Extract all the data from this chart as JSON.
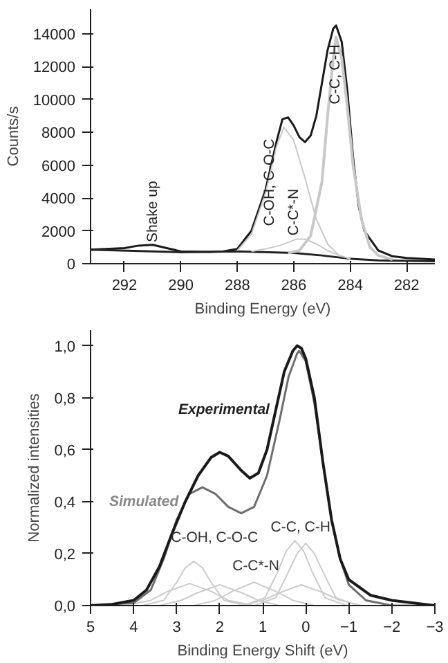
{
  "chart_data": [
    {
      "type": "line",
      "xlabel": "Binding Energy (eV)",
      "ylabel": "Counts/s",
      "xlim": [
        293.2,
        281
      ],
      "ylim": [
        0,
        15500
      ],
      "xticks": [
        292,
        290,
        288,
        286,
        284,
        282
      ],
      "yticks": [
        0,
        2000,
        4000,
        6000,
        8000,
        10000,
        12000,
        14000
      ],
      "grid": false,
      "marker": "none",
      "line_style": "solid",
      "annotations": [
        "Shake up",
        "C-OH, C-O-C",
        "C-C*-N",
        "C-C, C-H"
      ],
      "series": [
        {
          "color": "#1a1a1a",
          "x": [
            293.2,
            292,
            291.5,
            291,
            290.5,
            290,
            289,
            288.5,
            288,
            287.5,
            287,
            286.8,
            286.6,
            286.4,
            286.2,
            286,
            285.8,
            285.6,
            285.4,
            285.2,
            285,
            284.8,
            284.6,
            284.5,
            284.3,
            284.1,
            283.9,
            283.7,
            283.5,
            283,
            282.5,
            282,
            281
          ],
          "values": [
            850,
            950,
            1100,
            1150,
            950,
            750,
            720,
            750,
            900,
            2000,
            4500,
            6000,
            7500,
            8800,
            8900,
            8400,
            7700,
            7400,
            7800,
            9000,
            11000,
            13000,
            14300,
            14500,
            13500,
            10500,
            6500,
            3500,
            2000,
            800,
            450,
            350,
            250
          ]
        },
        {
          "color": "#222222",
          "x": [
            293.2,
            290,
            288,
            286,
            285,
            284,
            283,
            281
          ],
          "values": [
            850,
            700,
            750,
            650,
            500,
            300,
            200,
            150
          ]
        },
        {
          "color": "#c8c8c8",
          "x": [
            288,
            287.5,
            287,
            286.6,
            286.35,
            286,
            285.6,
            285.2,
            284.8,
            284.4,
            284
          ],
          "values": [
            800,
            1800,
            4300,
            7200,
            8300,
            7500,
            5200,
            2700,
            1200,
            500,
            300
          ]
        },
        {
          "color": "#c8c8c8",
          "x": [
            287.5,
            287,
            286.5,
            285.9,
            285.6,
            285.2,
            284.8,
            284.4,
            284
          ],
          "values": [
            750,
            900,
            1100,
            1500,
            1500,
            1200,
            800,
            500,
            300
          ]
        },
        {
          "color": "#c8c8c8",
          "x": [
            286.2,
            285.8,
            285.4,
            285,
            284.8,
            284.6,
            284.5,
            284.3,
            284.1,
            283.9,
            283.6,
            283.3,
            283,
            282.5
          ],
          "values": [
            650,
            800,
            1700,
            5000,
            9000,
            12500,
            13800,
            12500,
            9500,
            6000,
            2700,
            1000,
            500,
            250
          ]
        }
      ]
    },
    {
      "type": "line",
      "xlabel": "Binding Energy Shift (eV)",
      "ylabel": "Normalized intensities",
      "xlim": [
        5,
        -3
      ],
      "ylim": [
        0,
        1.06
      ],
      "xticks": [
        5,
        4,
        3,
        2,
        1,
        0,
        -1,
        -2,
        -3
      ],
      "yticks": [
        {
          "value": 0,
          "label": "0,0"
        },
        {
          "value": 0.2,
          "label": "0,2"
        },
        {
          "value": 0.4,
          "label": "0,4"
        },
        {
          "value": 0.6,
          "label": "0,6"
        },
        {
          "value": 0.8,
          "label": "0,8"
        },
        {
          "value": 1,
          "label": "1,0"
        }
      ],
      "grid": false,
      "marker": "none",
      "line_style": "solid",
      "annotations": [
        "Experimental",
        "Simulated",
        "C-OH, C-O-C",
        "C-C*-N",
        "C-C, C-H"
      ],
      "series": [
        {
          "color": "#cccccc",
          "x": [
            3.8,
            3.3,
            3.0,
            2.8,
            2.6,
            2.4,
            2.2,
            1.9,
            1.4
          ],
          "values": [
            0,
            0.02,
            0.09,
            0.145,
            0.17,
            0.145,
            0.09,
            0.02,
            0
          ]
        },
        {
          "color": "#cccccc",
          "x": [
            4.2,
            3.6,
            3.2,
            2.7,
            2.2,
            1.8,
            1.2
          ],
          "values": [
            0,
            0.02,
            0.055,
            0.085,
            0.055,
            0.02,
            0
          ]
        },
        {
          "color": "#cccccc",
          "x": [
            3.4,
            2.9,
            2.5,
            2.0,
            1.5,
            1.1,
            0.6
          ],
          "values": [
            0,
            0.02,
            0.05,
            0.08,
            0.05,
            0.02,
            0
          ]
        },
        {
          "color": "#cccccc",
          "x": [
            2.6,
            2.1,
            1.7,
            1.2,
            0.7,
            0.3,
            -0.2
          ],
          "values": [
            0,
            0.02,
            0.055,
            0.09,
            0.055,
            0.02,
            0
          ]
        },
        {
          "color": "#cccccc",
          "x": [
            1.45,
            0.95,
            0.65,
            0.45,
            0.25,
            0.05,
            -0.15,
            -0.45,
            -0.95
          ],
          "values": [
            0,
            0.03,
            0.13,
            0.21,
            0.25,
            0.21,
            0.13,
            0.03,
            0
          ]
        },
        {
          "color": "#cccccc",
          "x": [
            1.2,
            0.7,
            0.4,
            0.2,
            0,
            -0.2,
            -0.4,
            -0.7,
            -1.2
          ],
          "values": [
            0,
            0.03,
            0.13,
            0.2,
            0.24,
            0.2,
            0.13,
            0.03,
            0
          ]
        },
        {
          "color": "#cccccc",
          "x": [
            1.5,
            1,
            0.6,
            0.1,
            -0.4,
            -0.8,
            -1.3
          ],
          "values": [
            0,
            0.02,
            0.05,
            0.08,
            0.05,
            0.02,
            0
          ]
        },
        {
          "color": "#6e6e6e",
          "x": [
            5,
            4,
            3.6,
            3.3,
            3,
            2.7,
            2.4,
            2.1,
            1.8,
            1.5,
            1.2,
            0.9,
            0.6,
            0.4,
            0.2,
            0.15,
            0,
            -0.2,
            -0.4,
            -0.6,
            -0.8,
            -1,
            -1.4,
            -2,
            -3
          ],
          "values": [
            0,
            0.01,
            0.06,
            0.18,
            0.33,
            0.43,
            0.455,
            0.43,
            0.38,
            0.355,
            0.38,
            0.5,
            0.72,
            0.88,
            0.97,
            0.98,
            0.94,
            0.78,
            0.55,
            0.33,
            0.18,
            0.08,
            0.02,
            0,
            0
          ]
        },
        {
          "color": "#1a1a1a",
          "x": [
            5,
            4.5,
            4,
            3.7,
            3.4,
            3.1,
            2.8,
            2.5,
            2.2,
            2.0,
            1.8,
            1.5,
            1.3,
            1.1,
            0.9,
            0.7,
            0.5,
            0.3,
            0.2,
            0.1,
            0,
            -0.2,
            -0.4,
            -0.6,
            -0.8,
            -1,
            -1.5,
            -2,
            -3
          ],
          "values": [
            0,
            0.005,
            0.02,
            0.06,
            0.15,
            0.28,
            0.4,
            0.5,
            0.57,
            0.59,
            0.575,
            0.52,
            0.49,
            0.51,
            0.6,
            0.75,
            0.9,
            0.98,
            1.0,
            0.99,
            0.95,
            0.8,
            0.55,
            0.33,
            0.18,
            0.1,
            0.04,
            0.02,
            0
          ]
        }
      ]
    }
  ]
}
